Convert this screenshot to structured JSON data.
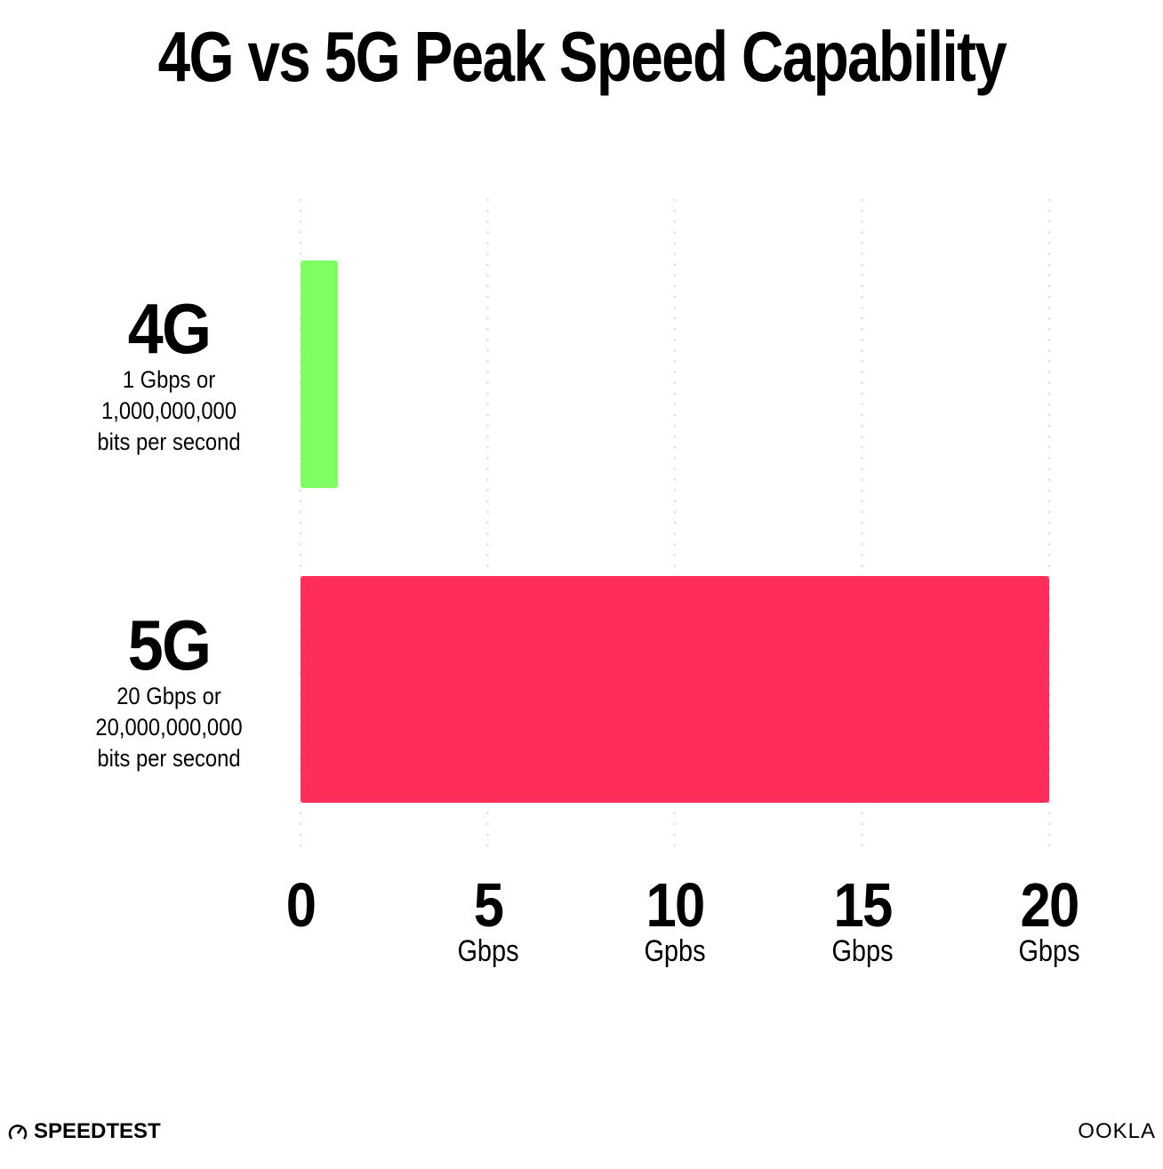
{
  "chart_data": {
    "type": "bar",
    "orientation": "horizontal",
    "title": "4G vs 5G Peak Speed Capability",
    "categories": [
      "4G",
      "5G"
    ],
    "category_notes": [
      [
        "1 Gbps or",
        "1,000,000,000",
        "bits per second"
      ],
      [
        "20 Gbps or",
        "20,000,000,000",
        "bits per second"
      ]
    ],
    "values": [
      1,
      20
    ],
    "colors": [
      "#80ff62",
      "#ff2d5a"
    ],
    "xlim": [
      0,
      20
    ],
    "ticks": [
      {
        "value": 0,
        "num": "0",
        "unit": ""
      },
      {
        "value": 5,
        "num": "5",
        "unit": "Gbps"
      },
      {
        "value": 10,
        "num": "10",
        "unit": "Gpbs"
      },
      {
        "value": 15,
        "num": "15",
        "unit": "Gbps"
      },
      {
        "value": 20,
        "num": "20",
        "unit": "Gbps"
      }
    ],
    "grid": true,
    "grid_style": "dotted vertical"
  },
  "branding": {
    "left": "SPEEDTEST",
    "right": "OOKLA"
  }
}
